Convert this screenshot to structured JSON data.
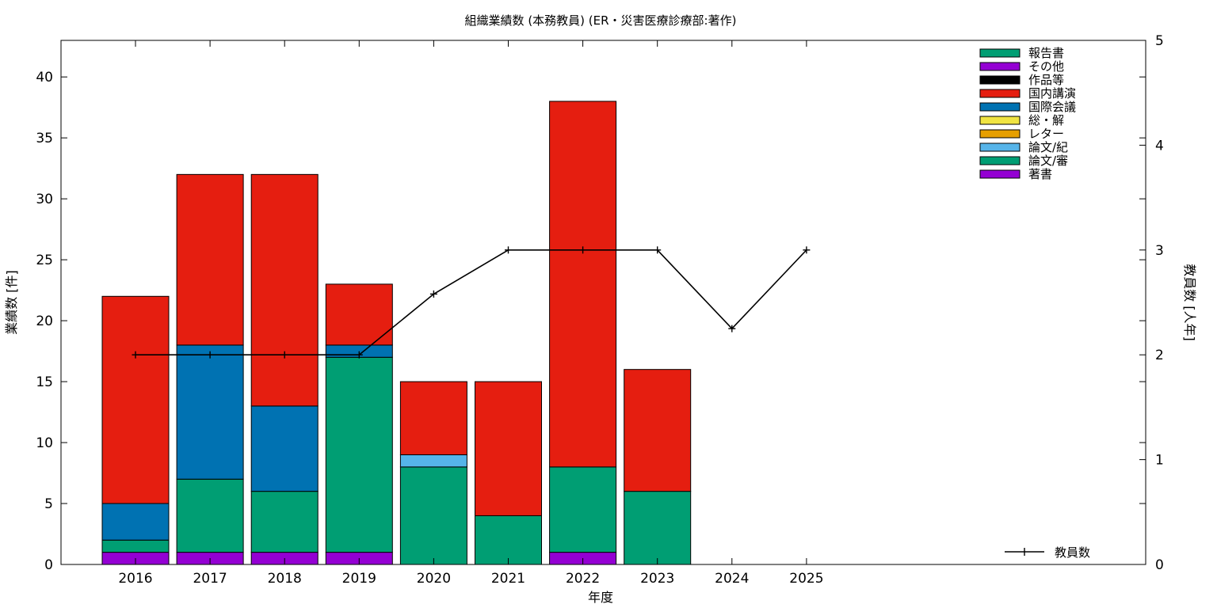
{
  "chart_data": {
    "type": "bar",
    "stacked": true,
    "title": "組織業績数 (本務教員) (ER・災害医療診療部:著作)",
    "xlabel": "年度",
    "ylabel": "業績数 [件]",
    "y2label": "教員数 [人年]",
    "categories": [
      "2016",
      "2017",
      "2018",
      "2019",
      "2020",
      "2021",
      "2022",
      "2023",
      "2024",
      "2025"
    ],
    "ylim": [
      0,
      43
    ],
    "yticks": [
      0,
      5,
      10,
      15,
      20,
      25,
      30,
      35,
      40
    ],
    "y2lim": [
      0,
      5
    ],
    "y2ticks": [
      0,
      1,
      2,
      3,
      4,
      5
    ],
    "grid": false,
    "legend_position": "top-right",
    "series": [
      {
        "name": "著書",
        "color": "#9400d3",
        "values": [
          1,
          1,
          1,
          1,
          0,
          0,
          1,
          0,
          0,
          0
        ]
      },
      {
        "name": "論文/審",
        "color": "#009e73",
        "values": [
          1,
          6,
          5,
          16,
          8,
          4,
          7,
          6,
          0,
          0
        ]
      },
      {
        "name": "論文/紀",
        "color": "#56b4e9",
        "values": [
          0,
          0,
          0,
          0,
          1,
          0,
          0,
          0,
          0,
          0
        ]
      },
      {
        "name": "レター",
        "color": "#e69f00",
        "values": [
          0,
          0,
          0,
          0,
          0,
          0,
          0,
          0,
          0,
          0
        ]
      },
      {
        "name": "総・解",
        "color": "#f0e442",
        "values": [
          0,
          0,
          0,
          0,
          0,
          0,
          0,
          0,
          0,
          0
        ]
      },
      {
        "name": "国際会議",
        "color": "#0072b2",
        "values": [
          3,
          11,
          7,
          1,
          0,
          0,
          0,
          0,
          0,
          0
        ]
      },
      {
        "name": "国内講演",
        "color": "#e51e10",
        "values": [
          17,
          14,
          19,
          5,
          6,
          11,
          30,
          10,
          0,
          0
        ]
      },
      {
        "name": "作品等",
        "color": "#000000",
        "values": [
          0,
          0,
          0,
          0,
          0,
          0,
          0,
          0,
          0,
          0
        ]
      },
      {
        "name": "その他",
        "color": "#9400d3",
        "values": [
          0,
          0,
          0,
          0,
          0,
          0,
          0,
          0,
          0,
          0
        ]
      },
      {
        "name": "報告書",
        "color": "#009e73",
        "values": [
          0,
          0,
          0,
          0,
          0,
          0,
          0,
          0,
          0,
          0
        ]
      }
    ],
    "line_series": {
      "name": "教員数",
      "axis": "y2",
      "color": "#000000",
      "values": [
        2,
        2,
        2,
        2,
        2.58,
        3,
        3,
        3,
        2.25,
        3
      ]
    }
  }
}
